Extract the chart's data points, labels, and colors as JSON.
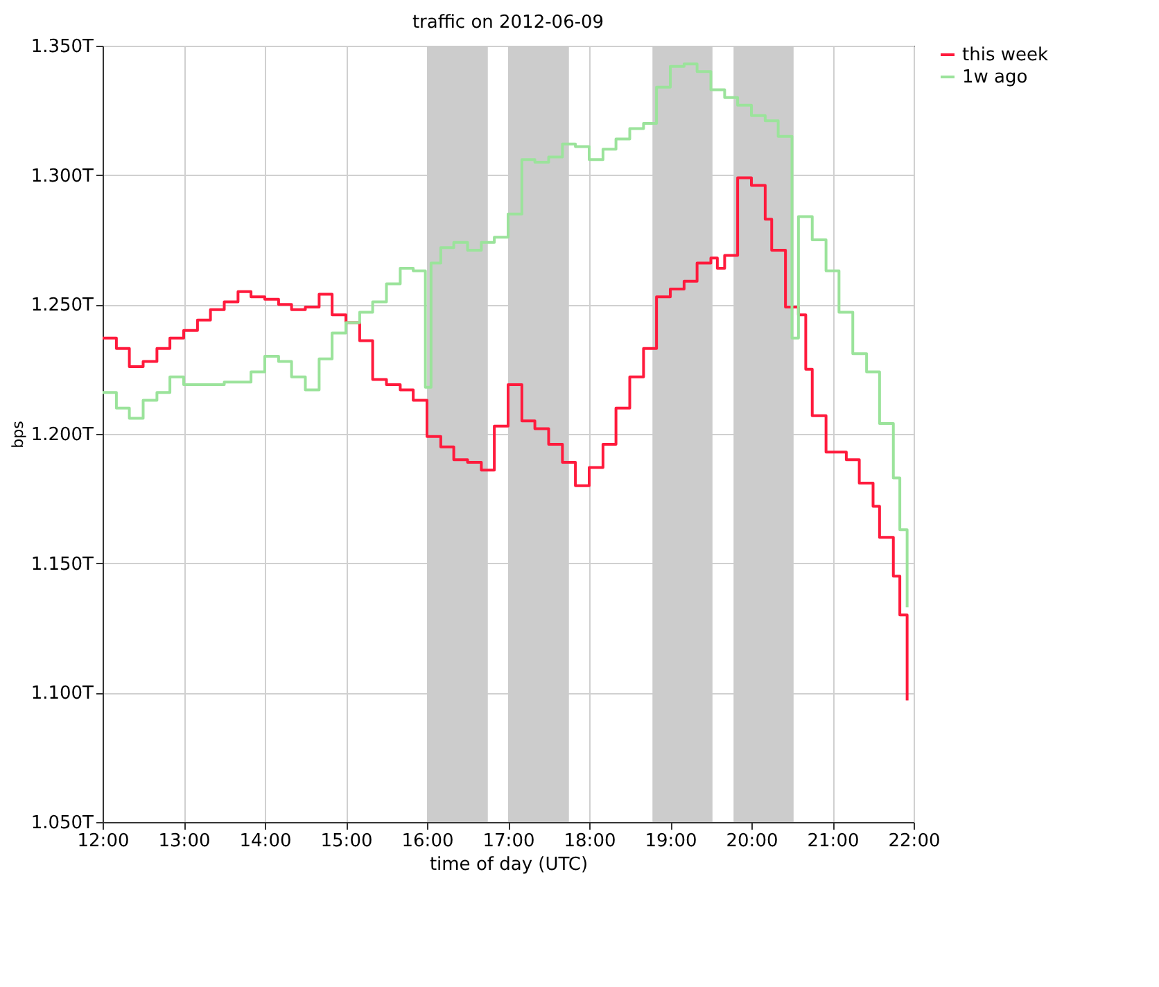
{
  "chart_data": {
    "type": "step",
    "title": "traffic on 2012-06-09",
    "xlabel": "time of day (UTC)",
    "ylabel": "bps",
    "xlim": [
      12,
      22
    ],
    "xticks": [
      {
        "value": 12,
        "label": "12:00"
      },
      {
        "value": 13,
        "label": "13:00"
      },
      {
        "value": 14,
        "label": "14:00"
      },
      {
        "value": 15,
        "label": "15:00"
      },
      {
        "value": 16,
        "label": "16:00"
      },
      {
        "value": 17,
        "label": "17:00"
      },
      {
        "value": 18,
        "label": "18:00"
      },
      {
        "value": 19,
        "label": "19:00"
      },
      {
        "value": 20,
        "label": "20:00"
      },
      {
        "value": 21,
        "label": "21:00"
      },
      {
        "value": 22,
        "label": "22:00"
      }
    ],
    "ylim": [
      1.05,
      1.35
    ],
    "yticks": [
      {
        "value": 1.05,
        "label": "1.050T"
      },
      {
        "value": 1.1,
        "label": "1.100T"
      },
      {
        "value": 1.15,
        "label": "1.150T"
      },
      {
        "value": 1.2,
        "label": "1.200T"
      },
      {
        "value": 1.25,
        "label": "1.250T"
      },
      {
        "value": 1.3,
        "label": "1.300T"
      },
      {
        "value": 1.35,
        "label": "1.350T"
      }
    ],
    "grid": true,
    "legend": "top right",
    "marker": "none",
    "line_style": "solid",
    "bands": [
      {
        "axis": "x",
        "from": 16,
        "to": 16.75,
        "color": "#cccccc"
      },
      {
        "axis": "x",
        "from": 17,
        "to": 17.75,
        "color": "#cccccc"
      },
      {
        "axis": "x",
        "from": 18.78,
        "to": 19.52,
        "color": "#cccccc"
      },
      {
        "axis": "x",
        "from": 19.78,
        "to": 20.52,
        "color": "#cccccc"
      }
    ],
    "series": [
      {
        "name": "this week",
        "color": "#ff1a3c",
        "x": [
          12,
          12.17,
          12.33,
          12.5,
          12.67,
          12.83,
          13,
          13.17,
          13.33,
          13.5,
          13.67,
          13.83,
          14,
          14.17,
          14.33,
          14.5,
          14.67,
          14.83,
          15,
          15.17,
          15.33,
          15.5,
          15.67,
          15.83,
          16,
          16.17,
          16.33,
          16.5,
          16.67,
          16.83,
          17,
          17.17,
          17.33,
          17.5,
          17.67,
          17.83,
          18,
          18.17,
          18.33,
          18.5,
          18.67,
          18.83,
          19,
          19.17,
          19.33,
          19.5,
          19.58,
          19.67,
          19.83,
          20,
          20.17,
          20.25,
          20.42,
          20.58,
          20.67,
          20.75,
          20.92,
          21.17,
          21.33,
          21.5,
          21.58,
          21.75,
          21.83,
          21.92
        ],
        "values": [
          1.237,
          1.233,
          1.226,
          1.228,
          1.233,
          1.237,
          1.24,
          1.244,
          1.248,
          1.251,
          1.255,
          1.253,
          1.252,
          1.25,
          1.248,
          1.249,
          1.254,
          1.246,
          1.243,
          1.236,
          1.221,
          1.219,
          1.217,
          1.213,
          1.199,
          1.195,
          1.19,
          1.189,
          1.186,
          1.203,
          1.219,
          1.205,
          1.202,
          1.196,
          1.189,
          1.18,
          1.187,
          1.196,
          1.21,
          1.222,
          1.233,
          1.253,
          1.256,
          1.259,
          1.266,
          1.268,
          1.264,
          1.269,
          1.299,
          1.296,
          1.283,
          1.271,
          1.249,
          1.246,
          1.225,
          1.207,
          1.193,
          1.19,
          1.181,
          1.172,
          1.16,
          1.145,
          1.13,
          1.097
        ]
      },
      {
        "name": "1w ago",
        "color": "#9be39b",
        "x": [
          12,
          12.17,
          12.33,
          12.5,
          12.67,
          12.83,
          13,
          13.5,
          13.83,
          14,
          14.17,
          14.33,
          14.5,
          14.67,
          14.83,
          15,
          15.17,
          15.33,
          15.5,
          15.67,
          15.83,
          15.98,
          16.05,
          16.17,
          16.33,
          16.5,
          16.67,
          16.83,
          17,
          17.17,
          17.33,
          17.5,
          17.67,
          17.83,
          18,
          18.17,
          18.33,
          18.5,
          18.67,
          18.83,
          19,
          19.17,
          19.33,
          19.5,
          19.67,
          19.83,
          20,
          20.17,
          20.33,
          20.5,
          20.58,
          20.75,
          20.92,
          21.08,
          21.25,
          21.42,
          21.58,
          21.75,
          21.83,
          21.92
        ],
        "values": [
          1.216,
          1.21,
          1.206,
          1.213,
          1.216,
          1.222,
          1.219,
          1.22,
          1.224,
          1.23,
          1.228,
          1.222,
          1.217,
          1.229,
          1.239,
          1.243,
          1.247,
          1.251,
          1.258,
          1.264,
          1.263,
          1.218,
          1.266,
          1.272,
          1.274,
          1.271,
          1.274,
          1.276,
          1.285,
          1.306,
          1.305,
          1.307,
          1.312,
          1.311,
          1.306,
          1.31,
          1.314,
          1.318,
          1.32,
          1.334,
          1.342,
          1.343,
          1.34,
          1.333,
          1.33,
          1.327,
          1.323,
          1.321,
          1.315,
          1.237,
          1.284,
          1.275,
          1.263,
          1.247,
          1.231,
          1.224,
          1.204,
          1.183,
          1.163,
          1.133
        ]
      }
    ]
  }
}
